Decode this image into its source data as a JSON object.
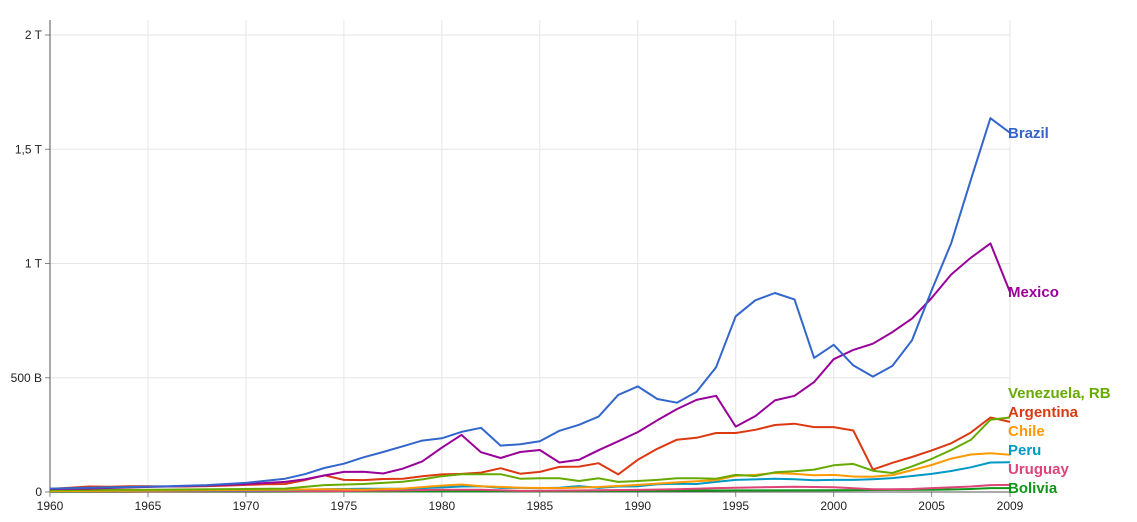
{
  "chart_data": {
    "type": "line",
    "title": "",
    "xlabel": "",
    "ylabel": "",
    "xlim": [
      1960,
      2009
    ],
    "ylim": [
      0,
      2000
    ],
    "y_unit": "billions",
    "x_ticks": [
      {
        "value": 1960,
        "label": "1960"
      },
      {
        "value": 1965,
        "label": "1965"
      },
      {
        "value": 1970,
        "label": "1970"
      },
      {
        "value": 1975,
        "label": "1975"
      },
      {
        "value": 1980,
        "label": "1980"
      },
      {
        "value": 1985,
        "label": "1985"
      },
      {
        "value": 1990,
        "label": "1990"
      },
      {
        "value": 1995,
        "label": "1995"
      },
      {
        "value": 2000,
        "label": "2000"
      },
      {
        "value": 2005,
        "label": "2005"
      },
      {
        "value": 2009,
        "label": "2009"
      }
    ],
    "y_ticks": [
      {
        "value": 0,
        "label": "0"
      },
      {
        "value": 500,
        "label": "500 B"
      },
      {
        "value": 1000,
        "label": "1 T"
      },
      {
        "value": 1500,
        "label": "1,5 T"
      },
      {
        "value": 2000,
        "label": "2 T"
      }
    ],
    "grid": true,
    "legend": "labels at line ends (right)",
    "series": [
      {
        "name": "Brazil",
        "color": "#3366cc",
        "points": [
          [
            1960,
            15
          ],
          [
            1962,
            19
          ],
          [
            1964,
            22
          ],
          [
            1966,
            25
          ],
          [
            1968,
            30
          ],
          [
            1970,
            40
          ],
          [
            1972,
            58
          ],
          [
            1973,
            78
          ],
          [
            1974,
            105
          ],
          [
            1975,
            124
          ],
          [
            1976,
            152
          ],
          [
            1977,
            175
          ],
          [
            1978,
            200
          ],
          [
            1979,
            225
          ],
          [
            1980,
            235
          ],
          [
            1981,
            263
          ],
          [
            1982,
            281
          ],
          [
            1983,
            203
          ],
          [
            1984,
            209
          ],
          [
            1985,
            222
          ],
          [
            1986,
            268
          ],
          [
            1987,
            294
          ],
          [
            1988,
            330
          ],
          [
            1989,
            425
          ],
          [
            1990,
            462
          ],
          [
            1991,
            407
          ],
          [
            1992,
            391
          ],
          [
            1993,
            438
          ],
          [
            1994,
            546
          ],
          [
            1995,
            769
          ],
          [
            1996,
            839
          ],
          [
            1997,
            871
          ],
          [
            1998,
            843
          ],
          [
            1999,
            587
          ],
          [
            2000,
            644
          ],
          [
            2001,
            554
          ],
          [
            2002,
            505
          ],
          [
            2003,
            552
          ],
          [
            2004,
            664
          ],
          [
            2005,
            882
          ],
          [
            2006,
            1089
          ],
          [
            2007,
            1366
          ],
          [
            2008,
            1636
          ],
          [
            2009,
            1572
          ]
        ]
      },
      {
        "name": "Mexico",
        "color": "#990099",
        "points": [
          [
            1960,
            13
          ],
          [
            1962,
            15
          ],
          [
            1964,
            20
          ],
          [
            1966,
            24
          ],
          [
            1968,
            28
          ],
          [
            1970,
            35
          ],
          [
            1972,
            44
          ],
          [
            1973,
            55
          ],
          [
            1974,
            72
          ],
          [
            1975,
            88
          ],
          [
            1976,
            89
          ],
          [
            1977,
            81
          ],
          [
            1978,
            102
          ],
          [
            1979,
            134
          ],
          [
            1980,
            194
          ],
          [
            1981,
            250
          ],
          [
            1982,
            174
          ],
          [
            1983,
            149
          ],
          [
            1984,
            175
          ],
          [
            1985,
            184
          ],
          [
            1986,
            129
          ],
          [
            1987,
            141
          ],
          [
            1988,
            183
          ],
          [
            1989,
            222
          ],
          [
            1990,
            262
          ],
          [
            1991,
            314
          ],
          [
            1992,
            363
          ],
          [
            1993,
            403
          ],
          [
            1994,
            421
          ],
          [
            1995,
            286
          ],
          [
            1996,
            332
          ],
          [
            1997,
            401
          ],
          [
            1998,
            421
          ],
          [
            1999,
            481
          ],
          [
            2000,
            581
          ],
          [
            2001,
            622
          ],
          [
            2002,
            649
          ],
          [
            2003,
            700
          ],
          [
            2004,
            759
          ],
          [
            2005,
            849
          ],
          [
            2006,
            952
          ],
          [
            2007,
            1025
          ],
          [
            2008,
            1088
          ],
          [
            2009,
            875
          ]
        ]
      },
      {
        "name": "Venezuela, RB",
        "color": "#66aa00",
        "points": [
          [
            1960,
            8
          ],
          [
            1965,
            10
          ],
          [
            1970,
            13
          ],
          [
            1972,
            15
          ],
          [
            1974,
            30
          ],
          [
            1976,
            35
          ],
          [
            1978,
            45
          ],
          [
            1979,
            55
          ],
          [
            1980,
            69
          ],
          [
            1981,
            78
          ],
          [
            1982,
            78
          ],
          [
            1983,
            78
          ],
          [
            1984,
            58
          ],
          [
            1985,
            60
          ],
          [
            1986,
            60
          ],
          [
            1987,
            48
          ],
          [
            1988,
            60
          ],
          [
            1989,
            44
          ],
          [
            1990,
            48
          ],
          [
            1991,
            53
          ],
          [
            1992,
            60
          ],
          [
            1993,
            60
          ],
          [
            1994,
            58
          ],
          [
            1995,
            75
          ],
          [
            1996,
            70
          ],
          [
            1997,
            86
          ],
          [
            1998,
            91
          ],
          [
            1999,
            98
          ],
          [
            2000,
            117
          ],
          [
            2001,
            123
          ],
          [
            2002,
            93
          ],
          [
            2003,
            83
          ],
          [
            2004,
            112
          ],
          [
            2005,
            145
          ],
          [
            2006,
            184
          ],
          [
            2007,
            228
          ],
          [
            2008,
            316
          ],
          [
            2009,
            326
          ]
        ]
      },
      {
        "name": "Argentina",
        "color": "#dc3912",
        "points": [
          [
            1960,
            13
          ],
          [
            1962,
            24
          ],
          [
            1963,
            23
          ],
          [
            1964,
            25
          ],
          [
            1965,
            25
          ],
          [
            1966,
            24
          ],
          [
            1967,
            24
          ],
          [
            1968,
            26
          ],
          [
            1969,
            28
          ],
          [
            1970,
            31
          ],
          [
            1971,
            34
          ],
          [
            1972,
            35
          ],
          [
            1973,
            52
          ],
          [
            1974,
            73
          ],
          [
            1975,
            53
          ],
          [
            1976,
            52
          ],
          [
            1977,
            57
          ],
          [
            1978,
            58
          ],
          [
            1979,
            69
          ],
          [
            1980,
            77
          ],
          [
            1981,
            79
          ],
          [
            1982,
            85
          ],
          [
            1983,
            104
          ],
          [
            1984,
            80
          ],
          [
            1985,
            88
          ],
          [
            1986,
            110
          ],
          [
            1987,
            111
          ],
          [
            1988,
            126
          ],
          [
            1989,
            77
          ],
          [
            1990,
            141
          ],
          [
            1991,
            189
          ],
          [
            1992,
            229
          ],
          [
            1993,
            237
          ],
          [
            1994,
            258
          ],
          [
            1995,
            258
          ],
          [
            1996,
            272
          ],
          [
            1997,
            293
          ],
          [
            1998,
            299
          ],
          [
            1999,
            284
          ],
          [
            2000,
            284
          ],
          [
            2001,
            269
          ],
          [
            2002,
            98
          ],
          [
            2003,
            128
          ],
          [
            2004,
            153
          ],
          [
            2005,
            182
          ],
          [
            2006,
            213
          ],
          [
            2007,
            260
          ],
          [
            2008,
            326
          ],
          [
            2009,
            307
          ]
        ]
      },
      {
        "name": "Chile",
        "color": "#ff9900",
        "points": [
          [
            1960,
            4
          ],
          [
            1965,
            6
          ],
          [
            1970,
            9
          ],
          [
            1972,
            10
          ],
          [
            1974,
            12
          ],
          [
            1976,
            10
          ],
          [
            1978,
            15
          ],
          [
            1980,
            28
          ],
          [
            1981,
            33
          ],
          [
            1982,
            25
          ],
          [
            1984,
            19
          ],
          [
            1986,
            17
          ],
          [
            1988,
            22
          ],
          [
            1990,
            31
          ],
          [
            1992,
            42
          ],
          [
            1994,
            52
          ],
          [
            1995,
            71
          ],
          [
            1996,
            75
          ],
          [
            1997,
            83
          ],
          [
            1998,
            79
          ],
          [
            1999,
            73
          ],
          [
            2000,
            75
          ],
          [
            2001,
            68
          ],
          [
            2002,
            67
          ],
          [
            2003,
            74
          ],
          [
            2004,
            96
          ],
          [
            2005,
            118
          ],
          [
            2006,
            146
          ],
          [
            2007,
            164
          ],
          [
            2008,
            170
          ],
          [
            2009,
            163
          ]
        ]
      },
      {
        "name": "Peru",
        "color": "#0099c6",
        "points": [
          [
            1960,
            3
          ],
          [
            1965,
            5
          ],
          [
            1970,
            7
          ],
          [
            1972,
            8
          ],
          [
            1974,
            12
          ],
          [
            1976,
            14
          ],
          [
            1978,
            14
          ],
          [
            1980,
            20
          ],
          [
            1981,
            24
          ],
          [
            1982,
            25
          ],
          [
            1983,
            18
          ],
          [
            1984,
            18
          ],
          [
            1985,
            17
          ],
          [
            1986,
            19
          ],
          [
            1987,
            26
          ],
          [
            1988,
            18
          ],
          [
            1989,
            24
          ],
          [
            1990,
            25
          ],
          [
            1991,
            34
          ],
          [
            1992,
            36
          ],
          [
            1993,
            35
          ],
          [
            1994,
            44
          ],
          [
            1995,
            53
          ],
          [
            1996,
            55
          ],
          [
            1997,
            58
          ],
          [
            1998,
            56
          ],
          [
            1999,
            51
          ],
          [
            2000,
            53
          ],
          [
            2001,
            53
          ],
          [
            2002,
            56
          ],
          [
            2003,
            61
          ],
          [
            2004,
            70
          ],
          [
            2005,
            79
          ],
          [
            2006,
            92
          ],
          [
            2007,
            108
          ],
          [
            2008,
            129
          ],
          [
            2009,
            130
          ]
        ]
      },
      {
        "name": "Uruguay",
        "color": "#dd4477",
        "points": [
          [
            1960,
            2
          ],
          [
            1965,
            2
          ],
          [
            1970,
            3
          ],
          [
            1975,
            4
          ],
          [
            1980,
            10
          ],
          [
            1982,
            10
          ],
          [
            1984,
            5
          ],
          [
            1986,
            6
          ],
          [
            1988,
            8
          ],
          [
            1990,
            9
          ],
          [
            1992,
            12
          ],
          [
            1994,
            17
          ],
          [
            1996,
            20
          ],
          [
            1998,
            23
          ],
          [
            2000,
            21
          ],
          [
            2002,
            12
          ],
          [
            2003,
            12
          ],
          [
            2004,
            13
          ],
          [
            2005,
            17
          ],
          [
            2006,
            20
          ],
          [
            2007,
            24
          ],
          [
            2008,
            30
          ],
          [
            2009,
            31
          ]
        ]
      },
      {
        "name": "Bolivia",
        "color": "#109618",
        "points": [
          [
            1960,
            0.5
          ],
          [
            1965,
            1
          ],
          [
            1970,
            1
          ],
          [
            1975,
            2
          ],
          [
            1980,
            3
          ],
          [
            1985,
            3
          ],
          [
            1990,
            5
          ],
          [
            1995,
            7
          ],
          [
            2000,
            8
          ],
          [
            2005,
            10
          ],
          [
            2006,
            11
          ],
          [
            2007,
            13
          ],
          [
            2008,
            17
          ],
          [
            2009,
            17
          ]
        ]
      }
    ]
  }
}
